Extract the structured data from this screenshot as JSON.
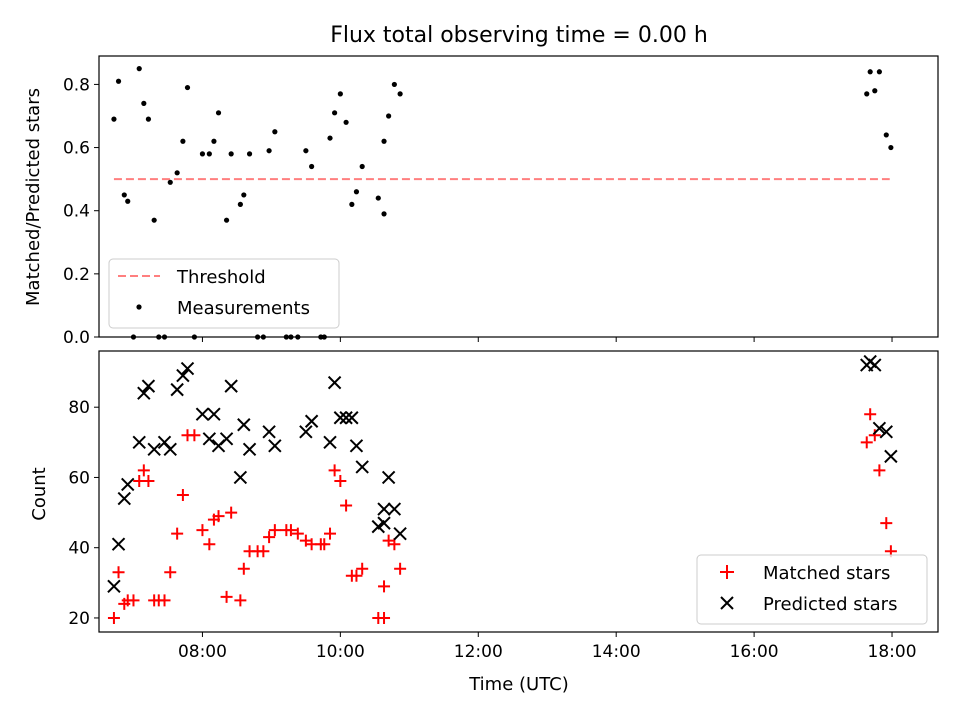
{
  "title": "Flux total observing time = 0.00 h",
  "chart_data": [
    {
      "type": "scatter",
      "ylabel": "Matched/Predicted stars",
      "xlabel": "",
      "xlim": [
        "06:30",
        "18:40"
      ],
      "ylim": [
        0,
        0.89
      ],
      "yticks": [
        0.0,
        0.2,
        0.4,
        0.6,
        0.8
      ],
      "ytick_labels": [
        "0.0",
        "0.2",
        "0.4",
        "0.6",
        "0.8"
      ],
      "legend_position": "lower-left",
      "series": [
        {
          "name": "Threshold",
          "kind": "dashed-line",
          "color": "#ff7f7f",
          "points": [
            {
              "x": "06:43",
              "y": 0.5
            },
            {
              "x": "17:58",
              "y": 0.5
            }
          ]
        },
        {
          "name": "Measurements",
          "kind": "dots",
          "color": "#000000",
          "points": [
            {
              "x": "06:43",
              "y": 0.69
            },
            {
              "x": "06:47",
              "y": 0.81
            },
            {
              "x": "06:52",
              "y": 0.45
            },
            {
              "x": "06:55",
              "y": 0.43
            },
            {
              "x": "07:00",
              "y": 0.0
            },
            {
              "x": "07:05",
              "y": 0.85
            },
            {
              "x": "07:09",
              "y": 0.74
            },
            {
              "x": "07:13",
              "y": 0.69
            },
            {
              "x": "07:18",
              "y": 0.37
            },
            {
              "x": "07:22",
              "y": 0.0
            },
            {
              "x": "07:27",
              "y": 0.0
            },
            {
              "x": "07:32",
              "y": 0.49
            },
            {
              "x": "07:38",
              "y": 0.52
            },
            {
              "x": "07:43",
              "y": 0.62
            },
            {
              "x": "07:47",
              "y": 0.79
            },
            {
              "x": "07:53",
              "y": 0.0
            },
            {
              "x": "08:00",
              "y": 0.58
            },
            {
              "x": "08:06",
              "y": 0.58
            },
            {
              "x": "08:10",
              "y": 0.62
            },
            {
              "x": "08:14",
              "y": 0.71
            },
            {
              "x": "08:21",
              "y": 0.37
            },
            {
              "x": "08:25",
              "y": 0.58
            },
            {
              "x": "08:33",
              "y": 0.42
            },
            {
              "x": "08:36",
              "y": 0.45
            },
            {
              "x": "08:41",
              "y": 0.58
            },
            {
              "x": "08:48",
              "y": 0.0
            },
            {
              "x": "08:53",
              "y": 0.0
            },
            {
              "x": "08:58",
              "y": 0.59
            },
            {
              "x": "09:03",
              "y": 0.65
            },
            {
              "x": "09:13",
              "y": 0.0
            },
            {
              "x": "09:17",
              "y": 0.0
            },
            {
              "x": "09:23",
              "y": 0.0
            },
            {
              "x": "09:30",
              "y": 0.59
            },
            {
              "x": "09:35",
              "y": 0.54
            },
            {
              "x": "09:43",
              "y": 0.0
            },
            {
              "x": "09:46",
              "y": 0.0
            },
            {
              "x": "09:51",
              "y": 0.63
            },
            {
              "x": "09:55",
              "y": 0.71
            },
            {
              "x": "10:00",
              "y": 0.77
            },
            {
              "x": "10:05",
              "y": 0.68
            },
            {
              "x": "10:10",
              "y": 0.42
            },
            {
              "x": "10:14",
              "y": 0.46
            },
            {
              "x": "10:19",
              "y": 0.54
            },
            {
              "x": "10:33",
              "y": 0.44
            },
            {
              "x": "10:38",
              "y": 0.62
            },
            {
              "x": "10:38",
              "y": 0.39
            },
            {
              "x": "10:42",
              "y": 0.7
            },
            {
              "x": "10:47",
              "y": 0.8
            },
            {
              "x": "10:52",
              "y": 0.77
            },
            {
              "x": "17:38",
              "y": 0.77
            },
            {
              "x": "17:41",
              "y": 0.84
            },
            {
              "x": "17:45",
              "y": 0.78
            },
            {
              "x": "17:49",
              "y": 0.84
            },
            {
              "x": "17:55",
              "y": 0.64
            },
            {
              "x": "17:59",
              "y": 0.6
            }
          ]
        }
      ]
    },
    {
      "type": "scatter",
      "ylabel": "Count",
      "xlabel": "Time (UTC)",
      "xlim": [
        "06:30",
        "18:40"
      ],
      "ylim": [
        16,
        96
      ],
      "yticks": [
        20,
        40,
        60,
        80
      ],
      "ytick_labels": [
        "20",
        "40",
        "60",
        "80"
      ],
      "xticks": [
        "08:00",
        "10:00",
        "12:00",
        "14:00",
        "16:00",
        "18:00"
      ],
      "xtick_labels": [
        "08:00",
        "10:00",
        "12:00",
        "14:00",
        "16:00",
        "18:00"
      ],
      "legend_position": "lower-right",
      "series": [
        {
          "name": "Matched stars",
          "kind": "plus",
          "color": "#ff0000",
          "points": [
            {
              "x": "06:43",
              "y": 20
            },
            {
              "x": "06:47",
              "y": 33
            },
            {
              "x": "06:52",
              "y": 24
            },
            {
              "x": "06:55",
              "y": 25
            },
            {
              "x": "07:00",
              "y": 25
            },
            {
              "x": "07:05",
              "y": 59
            },
            {
              "x": "07:09",
              "y": 62
            },
            {
              "x": "07:13",
              "y": 59
            },
            {
              "x": "07:18",
              "y": 25
            },
            {
              "x": "07:22",
              "y": 25
            },
            {
              "x": "07:27",
              "y": 25
            },
            {
              "x": "07:32",
              "y": 33
            },
            {
              "x": "07:38",
              "y": 44
            },
            {
              "x": "07:43",
              "y": 55
            },
            {
              "x": "07:47",
              "y": 72
            },
            {
              "x": "07:53",
              "y": 72
            },
            {
              "x": "08:00",
              "y": 45
            },
            {
              "x": "08:06",
              "y": 41
            },
            {
              "x": "08:10",
              "y": 48
            },
            {
              "x": "08:14",
              "y": 49
            },
            {
              "x": "08:21",
              "y": 26
            },
            {
              "x": "08:25",
              "y": 50
            },
            {
              "x": "08:33",
              "y": 25
            },
            {
              "x": "08:36",
              "y": 34
            },
            {
              "x": "08:41",
              "y": 39
            },
            {
              "x": "08:48",
              "y": 39
            },
            {
              "x": "08:53",
              "y": 39
            },
            {
              "x": "08:58",
              "y": 43
            },
            {
              "x": "09:03",
              "y": 45
            },
            {
              "x": "09:13",
              "y": 45
            },
            {
              "x": "09:17",
              "y": 45
            },
            {
              "x": "09:23",
              "y": 44
            },
            {
              "x": "09:30",
              "y": 42
            },
            {
              "x": "09:35",
              "y": 41
            },
            {
              "x": "09:43",
              "y": 41
            },
            {
              "x": "09:46",
              "y": 41
            },
            {
              "x": "09:51",
              "y": 44
            },
            {
              "x": "09:55",
              "y": 62
            },
            {
              "x": "10:00",
              "y": 59
            },
            {
              "x": "10:05",
              "y": 52
            },
            {
              "x": "10:10",
              "y": 32
            },
            {
              "x": "10:14",
              "y": 32
            },
            {
              "x": "10:19",
              "y": 34
            },
            {
              "x": "10:33",
              "y": 20
            },
            {
              "x": "10:38",
              "y": 20
            },
            {
              "x": "10:38",
              "y": 29
            },
            {
              "x": "10:42",
              "y": 42
            },
            {
              "x": "10:47",
              "y": 41
            },
            {
              "x": "10:52",
              "y": 34
            },
            {
              "x": "17:38",
              "y": 70
            },
            {
              "x": "17:41",
              "y": 78
            },
            {
              "x": "17:45",
              "y": 72
            },
            {
              "x": "17:49",
              "y": 62
            },
            {
              "x": "17:55",
              "y": 47
            },
            {
              "x": "17:59",
              "y": 39
            }
          ]
        },
        {
          "name": "Predicted stars",
          "kind": "x",
          "color": "#000000",
          "points": [
            {
              "x": "06:43",
              "y": 29
            },
            {
              "x": "06:47",
              "y": 41
            },
            {
              "x": "06:52",
              "y": 54
            },
            {
              "x": "06:55",
              "y": 58
            },
            {
              "x": "07:05",
              "y": 70
            },
            {
              "x": "07:09",
              "y": 84
            },
            {
              "x": "07:13",
              "y": 86
            },
            {
              "x": "07:18",
              "y": 68
            },
            {
              "x": "07:27",
              "y": 70
            },
            {
              "x": "07:32",
              "y": 68
            },
            {
              "x": "07:38",
              "y": 85
            },
            {
              "x": "07:43",
              "y": 89
            },
            {
              "x": "07:47",
              "y": 91
            },
            {
              "x": "08:00",
              "y": 78
            },
            {
              "x": "08:06",
              "y": 71
            },
            {
              "x": "08:10",
              "y": 78
            },
            {
              "x": "08:14",
              "y": 69
            },
            {
              "x": "08:21",
              "y": 71
            },
            {
              "x": "08:25",
              "y": 86
            },
            {
              "x": "08:33",
              "y": 60
            },
            {
              "x": "08:36",
              "y": 75
            },
            {
              "x": "08:41",
              "y": 68
            },
            {
              "x": "08:58",
              "y": 73
            },
            {
              "x": "09:03",
              "y": 69
            },
            {
              "x": "09:30",
              "y": 73
            },
            {
              "x": "09:35",
              "y": 76
            },
            {
              "x": "09:51",
              "y": 70
            },
            {
              "x": "09:55",
              "y": 87
            },
            {
              "x": "10:00",
              "y": 77
            },
            {
              "x": "10:05",
              "y": 77
            },
            {
              "x": "10:10",
              "y": 77
            },
            {
              "x": "10:14",
              "y": 69
            },
            {
              "x": "10:19",
              "y": 63
            },
            {
              "x": "10:33",
              "y": 46
            },
            {
              "x": "10:38",
              "y": 47
            },
            {
              "x": "10:38",
              "y": 51
            },
            {
              "x": "10:42",
              "y": 60
            },
            {
              "x": "10:47",
              "y": 51
            },
            {
              "x": "10:52",
              "y": 44
            },
            {
              "x": "17:38",
              "y": 92
            },
            {
              "x": "17:41",
              "y": 93
            },
            {
              "x": "17:45",
              "y": 92
            },
            {
              "x": "17:49",
              "y": 74
            },
            {
              "x": "17:55",
              "y": 73
            },
            {
              "x": "17:59",
              "y": 66
            }
          ]
        }
      ]
    }
  ]
}
